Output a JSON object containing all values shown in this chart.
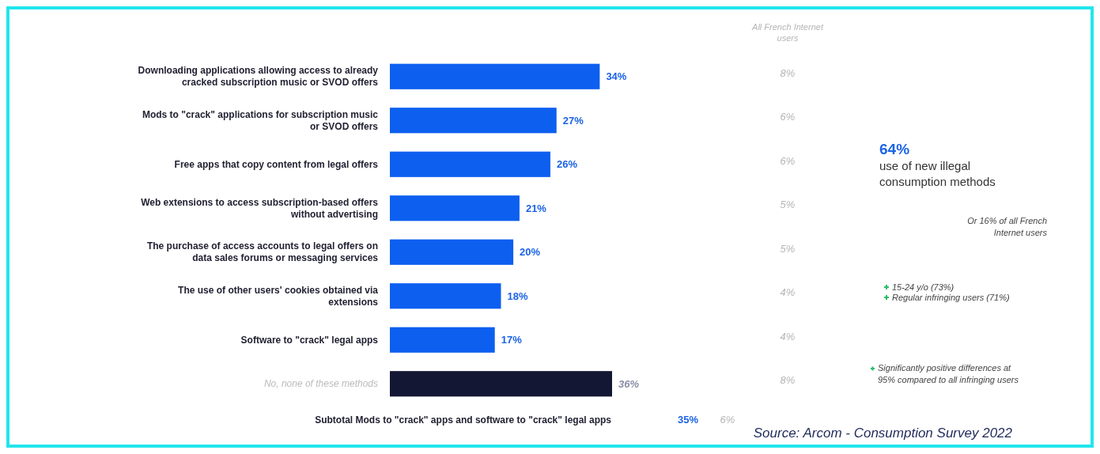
{
  "chart_data": {
    "type": "bar",
    "orientation": "horizontal",
    "value_labels": [
      "34%",
      "27%",
      "26%",
      "21%",
      "20%",
      "18%",
      "17%",
      "36%"
    ],
    "categories": [
      "Downloading applications allowing access to already cracked subscription music or SVOD offers",
      "Mods to \"crack\" applications for subscription music or SVOD offers",
      "Free apps that copy content from legal offers",
      "Web extensions to access subscription-based offers without advertising",
      "The purchase of access accounts to legal offers on data sales forums or messaging services",
      "The use of other users' cookies obtained via extensions",
      "Software to \"crack\" legal apps",
      "No, none of these methods"
    ],
    "values": [
      34,
      27,
      26,
      21,
      20,
      18,
      17,
      36
    ],
    "colors": [
      "#0d5ff0",
      "#0d5ff0",
      "#0d5ff0",
      "#0d5ff0",
      "#0d5ff0",
      "#0d5ff0",
      "#0d5ff0",
      "#141733"
    ],
    "annotations": [
      "All French Internet users",
      "8%",
      "6%",
      "6%",
      "5%",
      "5%",
      "4%",
      "4%",
      "8%",
      "Subtotal Mods to \"crack\" apps and software to \"crack\" legal apps",
      "35%",
      "6%",
      "64%",
      "use of new illegal consumption methods",
      "Or 16% of all French Internet users",
      "15-24 y/o (73%)",
      "Regular infringing users (71%)",
      "Significantly positive differences at 95% compared to all infringing users",
      "Source: Arcom - Consumption Survey 2022"
    ]
  }
}
